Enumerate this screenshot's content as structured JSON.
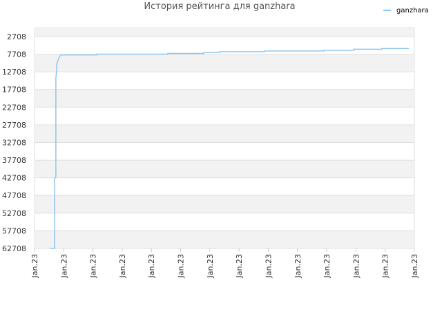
{
  "chart_data": {
    "type": "line",
    "title": "История рейтинга для ganzhara",
    "x": [
      0.54,
      0.69,
      0.69,
      0.73,
      0.73,
      0.76,
      0.76,
      0.8,
      0.85,
      0.9,
      2.13,
      2.13,
      4.56,
      4.56,
      5.79,
      5.79,
      6.33,
      6.33,
      7.87,
      7.87,
      9.9,
      9.9,
      10.92,
      10.92,
      11.89,
      11.89,
      12.81
    ],
    "series": [
      {
        "name": "ganzhara",
        "color": "#8ec6ee",
        "values": [
          62708,
          62708,
          42900,
          42500,
          14500,
          12000,
          10500,
          9500,
          8500,
          7900,
          7900,
          7700,
          7700,
          7500,
          7500,
          7200,
          7200,
          7000,
          7000,
          6800,
          6800,
          6600,
          6600,
          6300,
          6300,
          6100,
          6100
        ]
      }
    ],
    "xlim": [
      0,
      13
    ],
    "xticks": [
      {
        "value": 0,
        "label": "Jan.23"
      },
      {
        "value": 1,
        "label": "Jan.23"
      },
      {
        "value": 2,
        "label": "Jan.23"
      },
      {
        "value": 3,
        "label": "Jan.23"
      },
      {
        "value": 4,
        "label": "Jan.23"
      },
      {
        "value": 5,
        "label": "Jan.23"
      },
      {
        "value": 6,
        "label": "Jan.23"
      },
      {
        "value": 7,
        "label": "Jan.23"
      },
      {
        "value": 8,
        "label": "Jan.23"
      },
      {
        "value": 9,
        "label": "Jan.23"
      },
      {
        "value": 10,
        "label": "Jan.23"
      },
      {
        "value": 11,
        "label": "Jan.23"
      },
      {
        "value": 12,
        "label": "Jan.23"
      },
      {
        "value": 13,
        "label": "Jan.23"
      }
    ],
    "ylim": [
      62708,
      168
    ],
    "yticks": [
      2708,
      7708,
      12708,
      17708,
      22708,
      27708,
      32708,
      37708,
      42708,
      47708,
      52708,
      57708,
      62708
    ],
    "grid": true,
    "legend": "top-right"
  }
}
